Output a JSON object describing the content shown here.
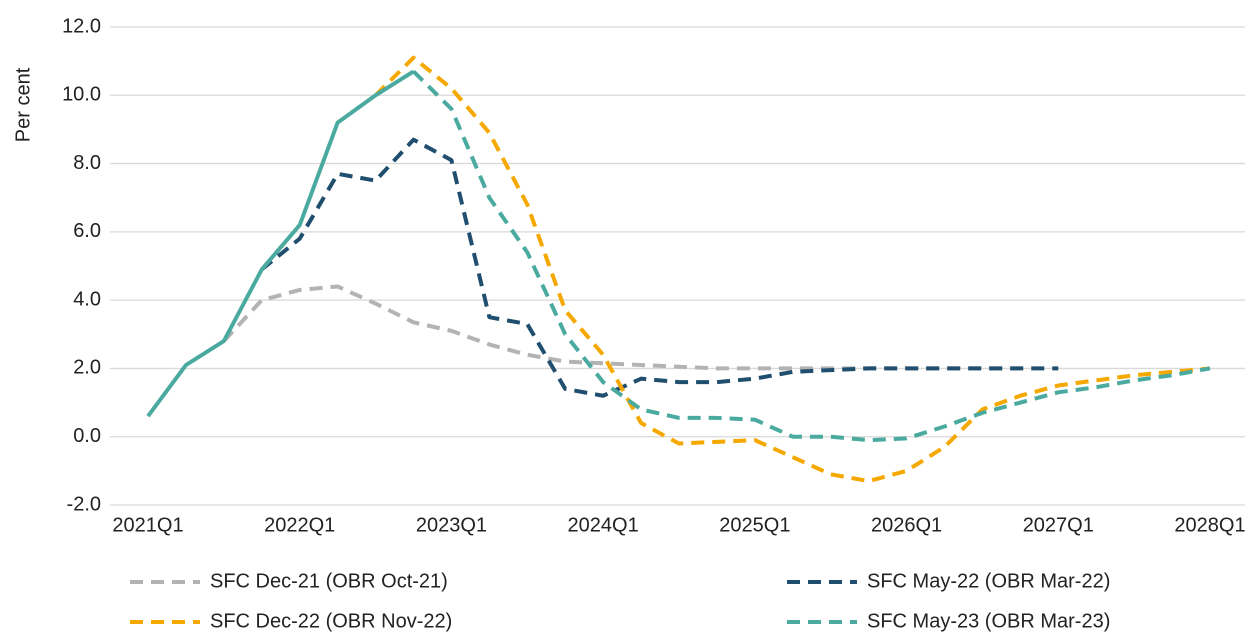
{
  "chart_data": {
    "type": "line",
    "ylabel": "Per cent",
    "categories": [
      "2021Q1",
      null,
      null,
      null,
      "2022Q1",
      null,
      null,
      null,
      "2023Q1",
      null,
      null,
      null,
      "2024Q1",
      null,
      null,
      null,
      "2025Q1",
      null,
      null,
      null,
      "2026Q1",
      null,
      null,
      null,
      "2027Q1",
      null,
      null,
      null,
      "2028Q1"
    ],
    "ylim": [
      -2,
      12
    ],
    "yticks": [
      {
        "value": -2,
        "label": "-2.0"
      },
      {
        "value": 0,
        "label": "0.0"
      },
      {
        "value": 2,
        "label": "2.0"
      },
      {
        "value": 4,
        "label": "4.0"
      },
      {
        "value": 6,
        "label": "6.0"
      },
      {
        "value": 8,
        "label": "8.0"
      },
      {
        "value": 10,
        "label": "10.0"
      },
      {
        "value": 12,
        "label": "12.0"
      }
    ],
    "grid": true,
    "legend": "bottom",
    "series": [
      {
        "name": "SFC Dec-21 (OBR Oct-21)",
        "color": "#b3b3b3",
        "dashed": true,
        "values": [
          null,
          null,
          2.8,
          4.0,
          4.3,
          4.4,
          3.9,
          3.35,
          3.1,
          2.7,
          2.4,
          2.2,
          2.15,
          2.1,
          2.05,
          2.0,
          2.0,
          2.0,
          2.0,
          2.0,
          2.0,
          2.0,
          2.0,
          2.0,
          null,
          null,
          null,
          null,
          null
        ]
      },
      {
        "name": "SFC May-22 (OBR Mar-22)",
        "color": "#1f4e6e",
        "dashed": true,
        "values": [
          null,
          null,
          null,
          4.9,
          5.8,
          7.7,
          7.5,
          8.7,
          8.1,
          3.5,
          3.3,
          1.4,
          1.2,
          1.7,
          1.6,
          1.6,
          1.7,
          1.9,
          1.95,
          2.0,
          2.0,
          2.0,
          2.0,
          2.0,
          2.0,
          null,
          null,
          null,
          null
        ]
      },
      {
        "name": "SFC Dec-22 (OBR Nov-22)",
        "color": "#f5a800",
        "dashed": true,
        "values": [
          null,
          null,
          null,
          null,
          null,
          null,
          10.0,
          11.1,
          10.2,
          8.9,
          6.8,
          3.7,
          2.4,
          0.4,
          -0.2,
          -0.15,
          -0.1,
          -0.6,
          -1.1,
          -1.3,
          -1.0,
          -0.3,
          0.8,
          1.2,
          1.5,
          1.65,
          1.8,
          1.9,
          2.0
        ]
      },
      {
        "name": "SFC May-23 (OBR Mar-23)",
        "color": "#4aaa9f",
        "dashed": true,
        "values": [
          null,
          null,
          null,
          null,
          null,
          null,
          null,
          10.7,
          9.6,
          7.0,
          5.4,
          3.0,
          1.6,
          0.8,
          0.55,
          0.55,
          0.5,
          0.0,
          0.0,
          -0.1,
          -0.05,
          0.3,
          0.7,
          1.0,
          1.3,
          1.45,
          1.65,
          1.8,
          2.0
        ]
      },
      {
        "color": "#4aaa9f",
        "dashed": false,
        "values": [
          0.6,
          2.1,
          2.8,
          4.9,
          6.2,
          9.2,
          10.0,
          10.7,
          null,
          null,
          null,
          null,
          null,
          null,
          null,
          null,
          null,
          null,
          null,
          null,
          null,
          null,
          null,
          null,
          null,
          null,
          null,
          null,
          null
        ]
      }
    ]
  }
}
